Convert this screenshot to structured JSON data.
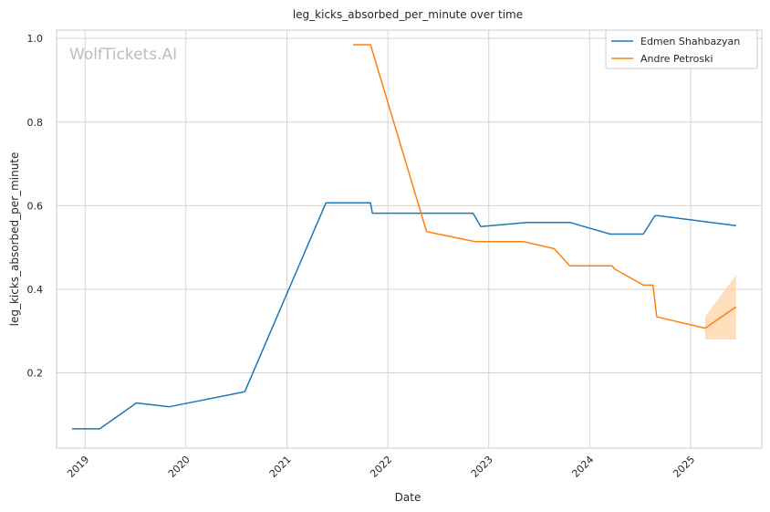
{
  "chart_data": {
    "type": "line",
    "title": "leg_kicks_absorbed_per_minute over time",
    "xlabel": "Date",
    "ylabel": "leg_kicks_absorbed_per_minute",
    "watermark": "WolfTickets.AI",
    "x_ticks": [
      "2019",
      "2020",
      "2021",
      "2022",
      "2023",
      "2024",
      "2025"
    ],
    "y_ticks": [
      "0.2",
      "0.4",
      "0.6",
      "0.8",
      "1.0"
    ],
    "xlim": [
      "2018-09-20",
      "2025-09-15"
    ],
    "ylim": [
      0.02,
      1.02
    ],
    "grid": true,
    "legend_position": "top-right",
    "colors": {
      "series_1": "#1f77b4",
      "series_2": "#ff7f0e",
      "band": "#ffcc99",
      "grid": "#d3d3d3",
      "frame": "#cccccc"
    },
    "series": [
      {
        "name": "Edmen Shahbazyan",
        "points": [
          [
            "2018-11-15",
            0.066
          ],
          [
            "2019-02-23",
            0.066
          ],
          [
            "2019-07-06",
            0.128
          ],
          [
            "2019-11-02",
            0.119
          ],
          [
            "2020-08-01",
            0.155
          ],
          [
            "2021-05-22",
            0.607
          ],
          [
            "2021-10-30",
            0.607
          ],
          [
            "2021-11-06",
            0.582
          ],
          [
            "2022-11-05",
            0.582
          ],
          [
            "2022-12-03",
            0.55
          ],
          [
            "2023-05-20",
            0.56
          ],
          [
            "2023-10-21",
            0.56
          ],
          [
            "2024-03-16",
            0.532
          ],
          [
            "2024-07-13",
            0.532
          ],
          [
            "2024-08-24",
            0.576
          ],
          [
            "2024-09-07",
            0.576
          ],
          [
            "2025-06-14",
            0.552
          ]
        ]
      },
      {
        "name": "Andre Petroski",
        "points": [
          [
            "2021-08-28",
            0.985
          ],
          [
            "2021-10-30",
            0.985
          ],
          [
            "2022-05-21",
            0.538
          ],
          [
            "2022-11-12",
            0.514
          ],
          [
            "2023-05-06",
            0.514
          ],
          [
            "2023-08-26",
            0.497
          ],
          [
            "2023-10-21",
            0.456
          ],
          [
            "2024-03-23",
            0.456
          ],
          [
            "2024-03-30",
            0.449
          ],
          [
            "2024-07-13",
            0.41
          ],
          [
            "2024-08-17",
            0.41
          ],
          [
            "2024-08-31",
            0.334
          ],
          [
            "2025-02-22",
            0.307
          ],
          [
            "2025-06-14",
            0.358
          ]
        ],
        "band": {
          "x": [
            "2025-02-22",
            "2025-06-14"
          ],
          "upper": [
            0.335,
            0.434
          ],
          "lower": [
            0.28,
            0.28
          ]
        }
      }
    ]
  }
}
